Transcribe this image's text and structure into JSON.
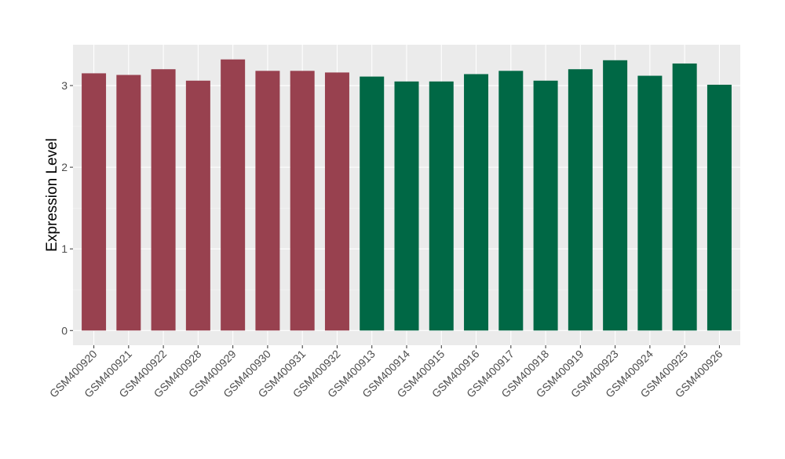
{
  "chart_data": {
    "type": "bar",
    "title": "",
    "xlabel": "",
    "ylabel": "Expression Level",
    "ylim": [
      -0.18,
      3.5
    ],
    "yticks": [
      0,
      1,
      2,
      3
    ],
    "grid": true,
    "legend": "none",
    "colors": {
      "panel_background": "#EBEBEB",
      "grid_major": "#FFFFFF",
      "grid_minor": "#F5F5F5",
      "tick_text": "#4D4D4D",
      "axis_title": "#000000"
    },
    "categories": [
      "GSM400920",
      "GSM400921",
      "GSM400922",
      "GSM400928",
      "GSM400929",
      "GSM400930",
      "GSM400931",
      "GSM400932",
      "GSM400913",
      "GSM400914",
      "GSM400915",
      "GSM400916",
      "GSM400917",
      "GSM400918",
      "GSM400919",
      "GSM400923",
      "GSM400924",
      "GSM400925",
      "GSM400926"
    ],
    "values": [
      3.15,
      3.13,
      3.2,
      3.06,
      3.32,
      3.18,
      3.18,
      3.16,
      3.11,
      3.05,
      3.05,
      3.14,
      3.18,
      3.06,
      3.2,
      3.31,
      3.12,
      3.27,
      3.01
    ],
    "bar_colors": [
      "#98414F",
      "#98414F",
      "#98414F",
      "#98414F",
      "#98414F",
      "#98414F",
      "#98414F",
      "#98414F",
      "#006845",
      "#006845",
      "#006845",
      "#006845",
      "#006845",
      "#006845",
      "#006845",
      "#006845",
      "#006845",
      "#006845",
      "#006845"
    ]
  }
}
